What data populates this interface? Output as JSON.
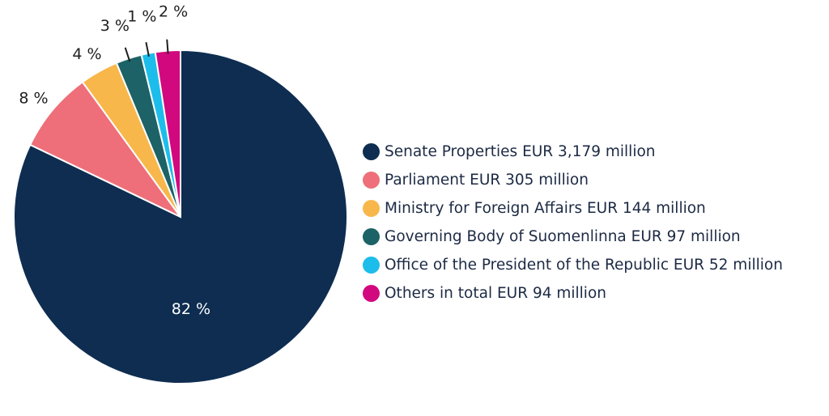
{
  "chart_data": {
    "type": "pie",
    "title": "",
    "slices": [
      {
        "label": "Senate Properties EUR 3,179 million",
        "value": 3179,
        "percent_label": "82 %",
        "color": "#0e2d51"
      },
      {
        "label": "Parliament EUR 305 million",
        "value": 305,
        "percent_label": "8 %",
        "color": "#ee6f79"
      },
      {
        "label": "Ministry for Foreign Affairs EUR 144 million",
        "value": 144,
        "percent_label": "4 %",
        "color": "#f8b74a"
      },
      {
        "label": "Governing Body of Suomenlinna EUR 97 million",
        "value": 97,
        "percent_label": "3 %",
        "color": "#1c6266"
      },
      {
        "label": "Office of the President of the Republic EUR 52 million",
        "value": 52,
        "percent_label": "1 %",
        "color": "#1cbdea"
      },
      {
        "label": "Others in total EUR 94 million",
        "value": 94,
        "percent_label": "2 %",
        "color": "#d2087f"
      }
    ],
    "legend_position": "right"
  }
}
